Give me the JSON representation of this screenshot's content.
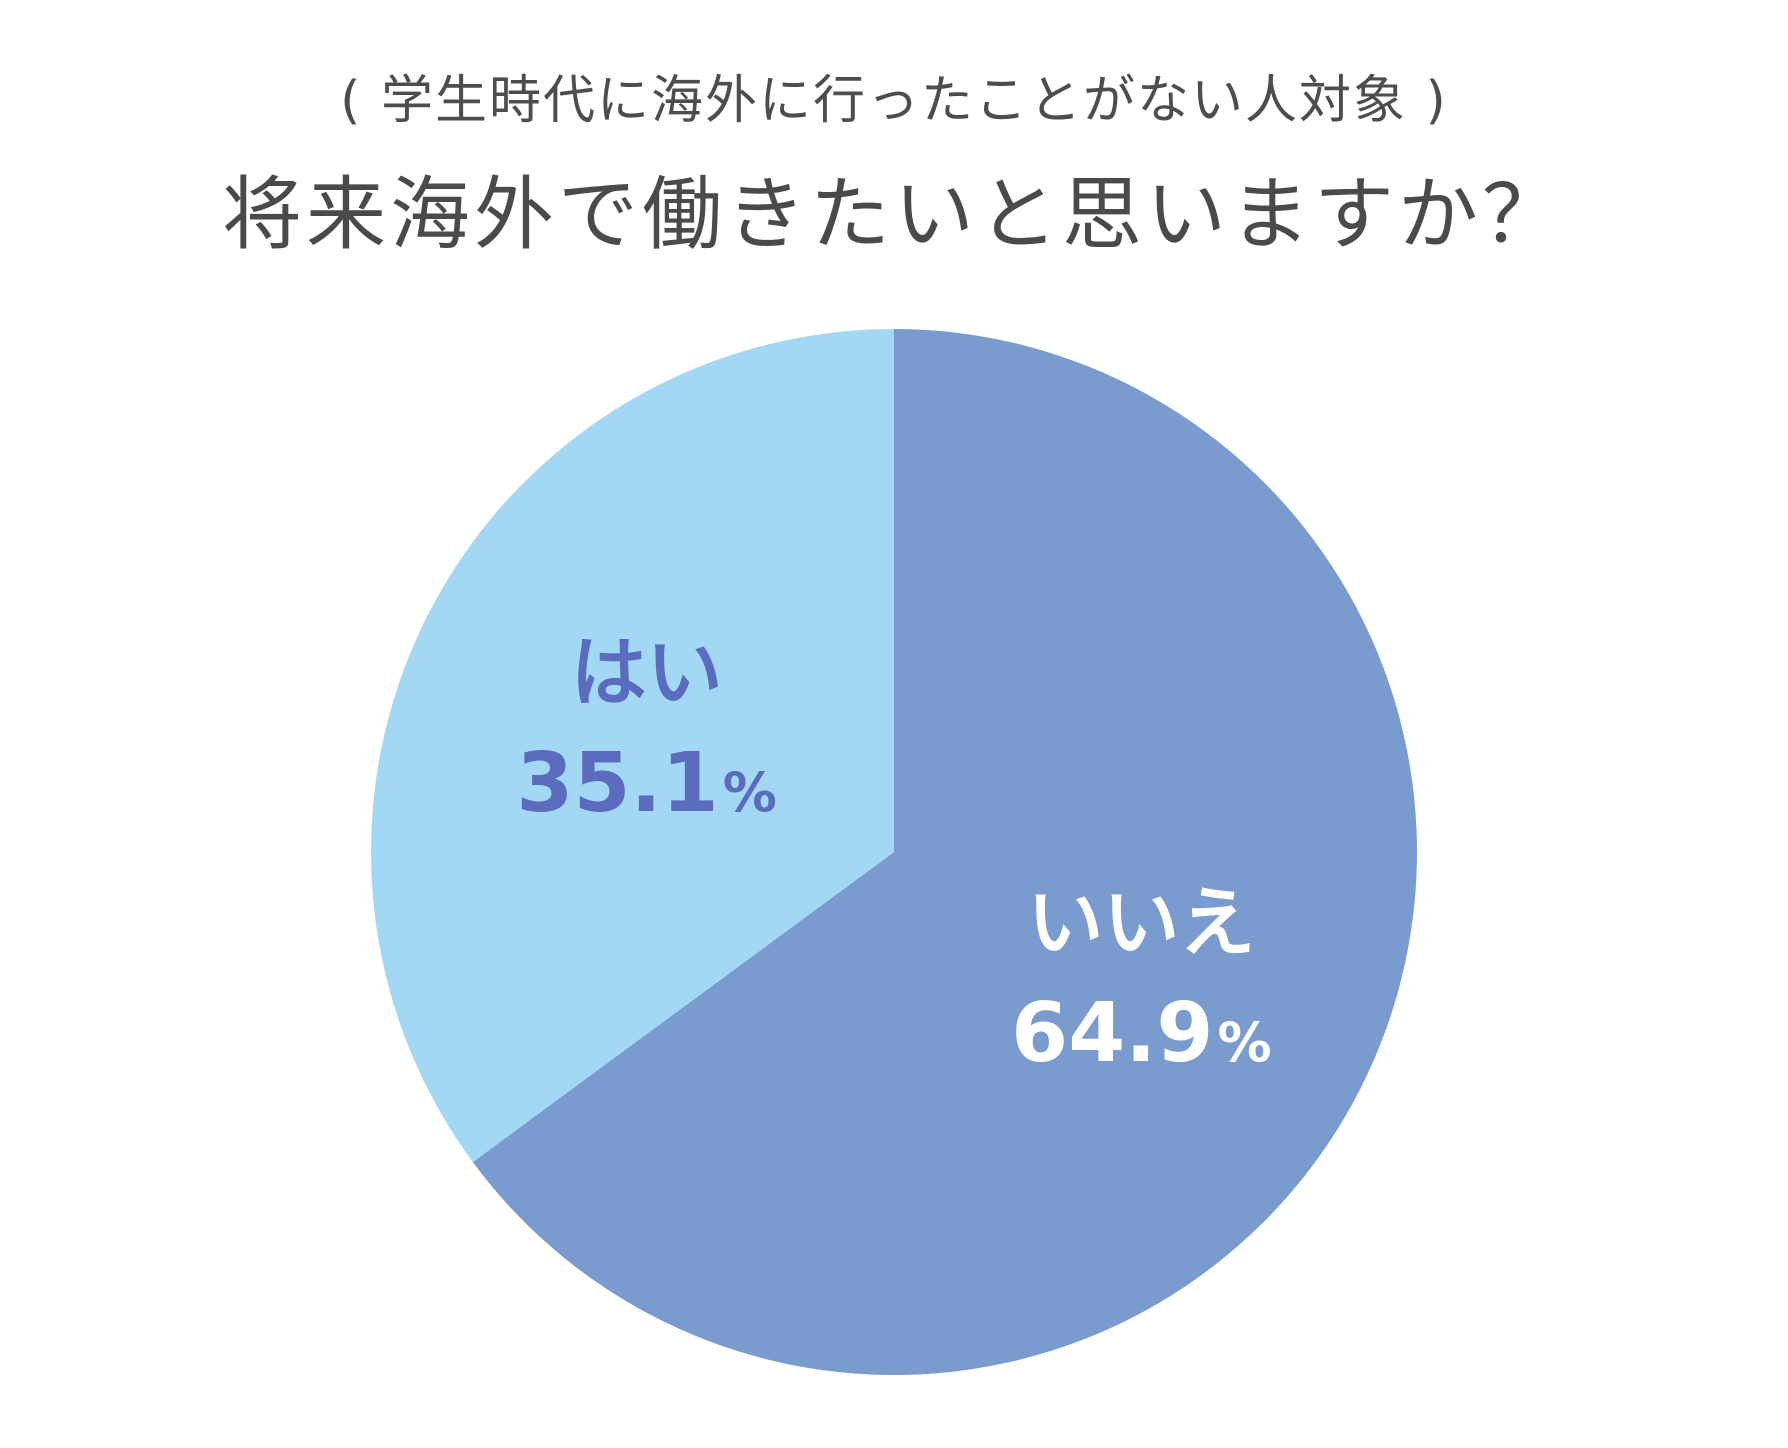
{
  "header": {
    "subtitle": "( 学生時代に海外に行ったことがない人対象 )",
    "title": "将来海外で働きたいと思いますか？"
  },
  "chart_data": {
    "type": "pie",
    "start_angle": "12 o'clock",
    "direction": "clockwise",
    "slices": [
      {
        "label": "いいえ",
        "value": 64.9,
        "value_text": "64.9",
        "unit": "%",
        "color": "#799bce",
        "label_color": "#ffffff"
      },
      {
        "label": "はい",
        "value": 35.1,
        "value_text": "35.1",
        "unit": "%",
        "color": "#a2d8f3",
        "label_color": "#5b6cbf"
      }
    ]
  }
}
